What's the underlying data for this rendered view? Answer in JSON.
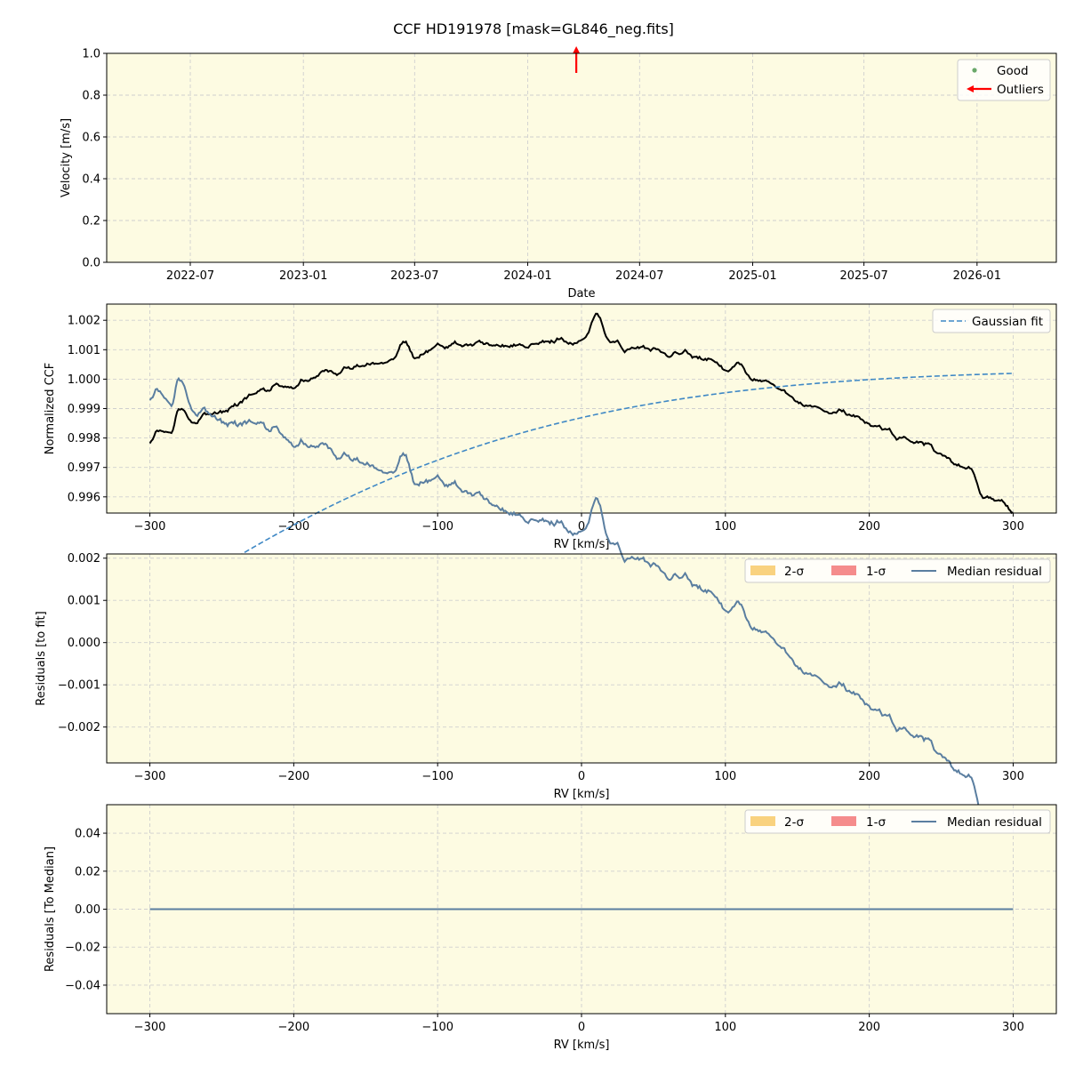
{
  "figure": {
    "title": "CCF HD191978 [mask=GL846_neg.fits]"
  },
  "colors": {
    "panel_bg": "#fdfbe2",
    "grid": "#cfcfcf",
    "ccf_line": "#000000",
    "gaussian_fit": "#3f88c5",
    "median_residual": "#5a7ea0",
    "two_sigma": "#f9d27f",
    "one_sigma": "#f58c8c",
    "good_marker": "#6aa86a",
    "outlier_arrow": "#ff0000"
  },
  "chart_data": [
    {
      "type": "scatter",
      "xlabel": "Date",
      "ylabel": "Velocity [m/s]",
      "x_ticks": [
        "2022-07",
        "2023-01",
        "2023-07",
        "2024-01",
        "2024-07",
        "2025-01",
        "2025-07",
        "2026-01"
      ],
      "xlim": [
        "2022-02-15",
        "2026-05-10"
      ],
      "ylim": [
        0.0,
        1.0
      ],
      "y_ticks": [
        "0.0",
        "0.2",
        "0.4",
        "0.6",
        "0.8",
        "1.0"
      ],
      "legend": [
        {
          "label": "Good",
          "marker": "dot"
        },
        {
          "label": "Outliers",
          "marker": "arrow"
        }
      ],
      "legend_position": "top-right",
      "grid": true,
      "good_points": [],
      "outliers": [
        {
          "date": "2024-03-20",
          "direction": "up"
        }
      ]
    },
    {
      "type": "line",
      "xlabel": "RV [km/s]",
      "ylabel": "Normalized CCF",
      "xlim": [
        -330,
        330
      ],
      "ylim": [
        0.99545,
        1.00255
      ],
      "x_ticks": [
        "−300",
        "−200",
        "−100",
        "0",
        "100",
        "200",
        "300"
      ],
      "y_ticks": [
        "0.996",
        "0.997",
        "0.998",
        "0.999",
        "1.000",
        "1.001",
        "1.002"
      ],
      "legend": [
        {
          "label": "Gaussian fit",
          "style": "dashed"
        }
      ],
      "legend_position": "top-right",
      "grid": true,
      "ccf_anchors": {
        "x": [
          -300,
          -295,
          -290,
          -285,
          -280,
          -270,
          -260,
          -250,
          -240,
          -230,
          -220,
          -210,
          -200,
          -190,
          -180,
          -170,
          -160,
          -150,
          -140,
          -130,
          -123,
          -115,
          -100,
          -90,
          -80,
          -70,
          -60,
          -50,
          -40,
          -30,
          -20,
          -15,
          -10,
          0,
          10,
          20,
          30,
          40,
          50,
          60,
          70,
          80,
          90,
          100,
          110,
          120,
          130,
          140,
          150,
          160,
          170,
          180,
          190,
          200,
          210,
          220,
          230,
          240,
          250,
          260,
          270,
          280,
          290,
          300
        ],
        "y": [
          0.99778,
          0.99815,
          0.99822,
          0.99808,
          0.99905,
          0.9986,
          0.9988,
          0.9989,
          0.99915,
          0.9994,
          0.9996,
          0.99985,
          0.9997,
          1.0,
          1.0002,
          1.00025,
          1.0004,
          1.00045,
          1.0006,
          1.0007,
          1.00125,
          1.00075,
          1.00115,
          1.0012,
          1.0011,
          1.00125,
          1.0012,
          1.0011,
          1.0012,
          1.00125,
          1.0013,
          1.0015,
          1.0012,
          1.0013,
          1.00215,
          1.0013,
          1.001,
          1.00115,
          1.001,
          1.0008,
          1.0009,
          1.00075,
          1.0006,
          1.0003,
          1.00045,
          1.0,
          0.9998,
          0.99955,
          0.99925,
          0.99905,
          0.99895,
          0.9989,
          0.99875,
          0.9985,
          0.9983,
          0.99805,
          0.99795,
          0.99775,
          0.99745,
          0.9971,
          0.9969,
          0.99595,
          0.9959,
          0.9955
        ]
      },
      "gaussian_fit": {
        "x_range": [
          -300,
          300
        ],
        "baseline": 1.00034,
        "amplitude": 0.0197,
        "center": -735,
        "sigma": 330
      }
    },
    {
      "type": "line",
      "xlabel": "RV [km/s]",
      "ylabel": "Residuals [to fit]",
      "xlim": [
        -330,
        330
      ],
      "ylim": [
        -0.00285,
        0.0021
      ],
      "x_ticks": [
        "−300",
        "−200",
        "−100",
        "0",
        "100",
        "200",
        "300"
      ],
      "y_ticks": [
        "−0.002",
        "−0.001",
        "0.000",
        "0.001",
        "0.002"
      ],
      "legend": [
        {
          "label": "2-σ",
          "style": "patch"
        },
        {
          "label": "1-σ",
          "style": "patch"
        },
        {
          "label": "Median residual",
          "style": "line"
        }
      ],
      "legend_position": "top-right",
      "grid": true,
      "series": [
        {
          "name": "Median residual",
          "definition": "ccf_minus_gaussian_fit"
        }
      ]
    },
    {
      "type": "line",
      "xlabel": "RV [km/s]",
      "ylabel": "Residuals [To Median]",
      "xlim": [
        -330,
        330
      ],
      "ylim": [
        -0.055,
        0.055
      ],
      "x_ticks": [
        "−300",
        "−200",
        "−100",
        "0",
        "100",
        "200",
        "300"
      ],
      "y_ticks": [
        "−0.04",
        "−0.02",
        "0.00",
        "0.02",
        "0.04"
      ],
      "legend": [
        {
          "label": "2-σ",
          "style": "patch"
        },
        {
          "label": "1-σ",
          "style": "patch"
        },
        {
          "label": "Median residual",
          "style": "line"
        }
      ],
      "legend_position": "top-right",
      "grid": true,
      "series": [
        {
          "name": "Median residual",
          "x_range": [
            -300,
            300
          ],
          "constant": 0.0
        }
      ]
    }
  ]
}
